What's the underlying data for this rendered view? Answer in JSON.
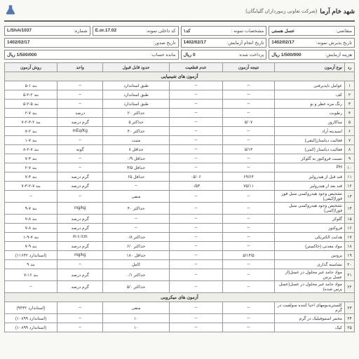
{
  "header": {
    "company": "شهد خام آرما",
    "subtitle": "(شرکت تعاونی زنبورداران گلپایگان)"
  },
  "meta": {
    "applicant_label": "متقاضی:",
    "applicant_value": "عسل هستی",
    "sample_spec_label": "مشخصات نمونه :",
    "sample_spec_value": "کد۱",
    "internal_code_label": "کد داخلی نمونه:",
    "internal_code_value": "02.E.or.17",
    "number_label": "شماره:",
    "number_value": "L/ShA/1037",
    "accept_date_label": "تاریخ پذیرش نمونه:",
    "accept_date_value": "1402/02/17",
    "test_date_label": "تاریخ انجام آزمایش:",
    "test_date_value": "1402/02/17",
    "issue_date_label": "تاریخ صدور:",
    "issue_date_value": "1402/02/17",
    "cost_label": "هزینه آزمایش:",
    "cost_value": "1/500/000 ریال",
    "paid_label": "پرداخت شده:",
    "paid_value": "0 ریال",
    "balance_label": "مانده حساب:",
    "balance_value": "1/500/000 ریال"
  },
  "columns": {
    "num": "رد",
    "test": "نوع آزمون",
    "result": "نتیجه آزمون",
    "reject": "عدم قطعیت",
    "accept": "حدود قابل قبول",
    "unit": "واحد",
    "method": "روش آزمون"
  },
  "sections": {
    "chem": "آزمون های شیمیایی",
    "micro": "آزمون های میکروبی"
  },
  "rows": [
    {
      "n": "۱",
      "name": "عوامل ناپذیرفتی",
      "res": "--",
      "rej": "--",
      "acc": "طبق استاندارد",
      "unit": "--",
      "meth": "بند ۱-۵"
    },
    {
      "n": "۲",
      "name": "کف",
      "res": "--",
      "rej": "--",
      "acc": "طبق استاندارد",
      "unit": "--",
      "meth": "بند ۲-۲-۵"
    },
    {
      "n": "۳",
      "name": "رنگ مزه عطر و بو",
      "res": "--",
      "rej": "--",
      "acc": "طبق استاندارد",
      "unit": "--",
      "meth": "بند ۵-۲-۵"
    },
    {
      "n": "۴",
      "name": "رطوبت",
      "res": "--",
      "rej": "--",
      "acc": "حداکثر ۲۰",
      "unit": "درصد",
      "meth": "بند ۷-۲"
    },
    {
      "n": "۵",
      "name": "ساکاروز",
      "res": "۵/۰۷",
      "rej": "--",
      "acc": "حداکثر ۵",
      "unit": "گرم درصد",
      "meth": "بند ۲-۳-۲-۷"
    },
    {
      "n": "۶",
      "name": "اسیدیته آزاد",
      "res": "--",
      "rej": "--",
      "acc": "حداکثر ۴۰",
      "unit": "mEq/Kg",
      "meth": "بند ۲-۷"
    },
    {
      "n": "۷",
      "name": "فعالیت دیاستاز(کیفی)",
      "res": "--",
      "rej": "--",
      "acc": "مثبت",
      "unit": "--",
      "meth": "بند ۷-۱"
    },
    {
      "n": "۸",
      "name": "فعالیت دیاستاز (کمی)",
      "res": "۵/۱۳",
      "rej": "--",
      "acc": "حداقل ۸",
      "unit": "گوته",
      "meth": "بند ۷-۲-۸"
    },
    {
      "n": "۹",
      "name": "نسبت فروکتوز به گلوکز",
      "res": "--",
      "rej": "--",
      "acc": "حداقل ۰/۹",
      "unit": "--",
      "meth": "بند ۳-۷"
    },
    {
      "n": "۱۰",
      "name": "PH",
      "res": "--",
      "rej": "--",
      "acc": "حداقل ۳/۵",
      "unit": "--",
      "meth": "بند ۷-۲"
    },
    {
      "n": "۱۱",
      "name": "قند قبل از هیدرولیز",
      "res": "۶۹/۶۴",
      "rej": "۰۵/۰۶",
      "acc": "حداقل ۶۵",
      "unit": "گرم درصد",
      "meth": "بند ۳-۷"
    },
    {
      "n": "۱۲",
      "name": "قند بعد از هیدرولیز",
      "res": "۷۵/۱۱",
      "rej": "۰/۵۳",
      "acc": "--",
      "unit": "گرم درصد",
      "meth": "بند ۷-۲-۳-۷"
    },
    {
      "n": "۱۳",
      "name": "تشخیص وجود هیدروکسی متیل فور فورا(کیفی)",
      "res": "--",
      "rej": "--",
      "acc": "منفی",
      "unit": "--",
      "meth": "--"
    },
    {
      "n": "۱۴",
      "name": "تشخیص وجود هیدروکسی متیل فورا(کمی)",
      "res": "--",
      "rej": "--",
      "acc": "حداکثر ۴۰",
      "unit": "mg/kg",
      "meth": "بند ۷-۹"
    },
    {
      "n": "۱۵",
      "name": "گلوکز",
      "res": "--",
      "rej": "--",
      "acc": "--",
      "unit": "گرم درصد",
      "meth": "بند ۸-۷"
    },
    {
      "n": "۱۶",
      "name": "فروکتوز",
      "res": "--",
      "rej": "--",
      "acc": "--",
      "unit": "گرم درصد",
      "meth": "بند ۸-۷"
    },
    {
      "n": "۱۷",
      "name": "هدایت الکتریکی",
      "res": "--",
      "rej": "--",
      "acc": "حداکثر ۰/۸",
      "unit": "m s /cm",
      "meth": "بند ۷-۹-۱"
    },
    {
      "n": "۱۸",
      "name": "مواد معدنی (خاکستر)",
      "res": "--",
      "rej": "--",
      "acc": "حداکثر ۶/۰",
      "unit": "گرم درصد",
      "meth": "بند ۹-۷"
    },
    {
      "n": "۱۹",
      "name": "پروتین",
      "res": "۵/۱۴/۵",
      "rej": "--",
      "acc": "حداقل ۱۸۰",
      "unit": "mg/kg",
      "meth": "(استاندارد ۱۱۶۴۲)"
    },
    {
      "n": "۲۰",
      "name": "نشاسته گذاری",
      "res": "--",
      "rej": "--",
      "acc": "کامل",
      "unit": "--",
      "meth": "بند ۹"
    },
    {
      "n": "۲۱",
      "name": "مواد جامد غیر محلول در عسل(از عسل پرس",
      "res": "--",
      "rej": "--",
      "acc": "حداکثر ۰/۱",
      "unit": "گرم درصد",
      "meth": "بند ۱۶-۷"
    },
    {
      "n": "۲۲",
      "name": "مواد جامد غیر محلول در عسل(عسل پرس شده)",
      "res": "--",
      "rej": "--",
      "acc": "حداکثر ۵/۰",
      "unit": "گرم درصد",
      "meth": "--"
    }
  ],
  "micro_rows": [
    {
      "n": "۲۳",
      "name": "کلستریدیومهای احیا کننده سولفیت در گرم",
      "res": "--",
      "rej": "--",
      "acc": "منفی",
      "unit": "--",
      "meth": "(استاندارد ۹۴۳۲)"
    },
    {
      "n": "۲۴",
      "name": "مخمر اسموفیلیک در گرم",
      "res": "--",
      "rej": "--",
      "acc": "۱۰",
      "unit": "--",
      "meth": "(استاندارد ۱۰۸۹۹)"
    },
    {
      "n": "۲۵",
      "name": "کپک",
      "res": "--",
      "rej": "--",
      "acc": "۱۰",
      "unit": "--",
      "meth": "(استاندارد ۱۰۸۹۹)"
    }
  ]
}
